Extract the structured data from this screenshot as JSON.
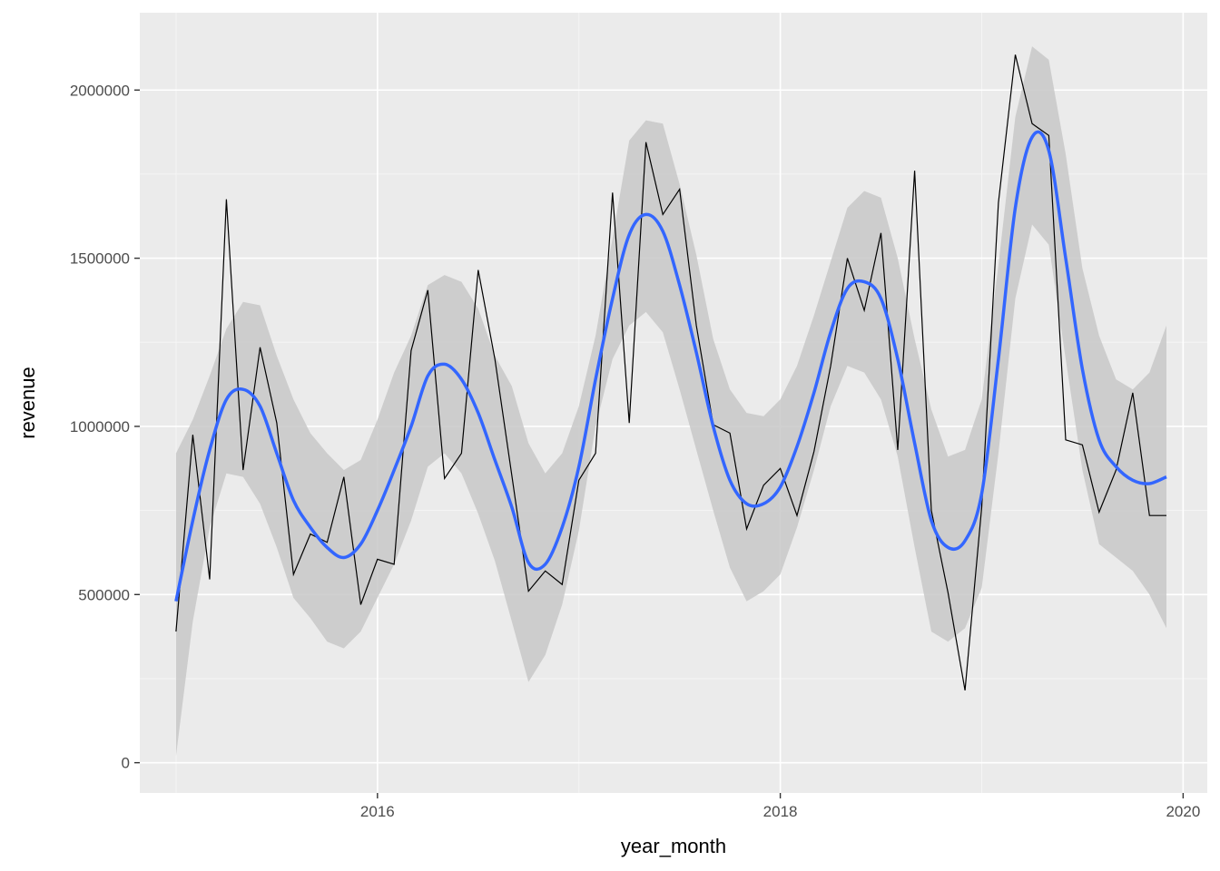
{
  "chart_data": {
    "type": "line",
    "title": "",
    "xlabel": "year_month",
    "ylabel": "revenue",
    "xlim": [
      2014.82,
      2020.12
    ],
    "ylim": [
      -90000,
      2230000
    ],
    "x_ticks": [
      2016,
      2018,
      2020
    ],
    "x_tick_labels": [
      "2016",
      "2018",
      "2020"
    ],
    "y_ticks": [
      0,
      500000,
      1000000,
      1500000,
      2000000
    ],
    "y_tick_labels": [
      "0",
      "500000",
      "1000000",
      "1500000",
      "2000000"
    ],
    "grid": true,
    "legend": "none",
    "colors": {
      "panel": "#ebebeb",
      "grid_major": "#ffffff",
      "grid_minor": "#f5f5f5",
      "raw_line": "#000000",
      "smooth_line": "#3366ff",
      "ribbon": "#c8c8c8"
    },
    "series": [
      {
        "kind": "raw",
        "x": [
          2015.0,
          2015.083,
          2015.167,
          2015.25,
          2015.333,
          2015.417,
          2015.5,
          2015.583,
          2015.667,
          2015.75,
          2015.833,
          2015.917,
          2016.0,
          2016.083,
          2016.167,
          2016.25,
          2016.333,
          2016.417,
          2016.5,
          2016.583,
          2016.667,
          2016.75,
          2016.833,
          2016.917,
          2017.0,
          2017.083,
          2017.167,
          2017.25,
          2017.333,
          2017.417,
          2017.5,
          2017.583,
          2017.667,
          2017.75,
          2017.833,
          2017.917,
          2018.0,
          2018.083,
          2018.167,
          2018.25,
          2018.333,
          2018.417,
          2018.5,
          2018.583,
          2018.667,
          2018.75,
          2018.833,
          2018.917,
          2019.0,
          2019.083,
          2019.167,
          2019.25,
          2019.333,
          2019.417,
          2019.5,
          2019.583,
          2019.667,
          2019.75,
          2019.833,
          2019.917
        ],
        "values": [
          390000,
          975000,
          545000,
          1675000,
          870000,
          1235000,
          1010000,
          560000,
          680000,
          655000,
          850000,
          470000,
          605000,
          590000,
          1225000,
          1405000,
          845000,
          920000,
          1465000,
          1200000,
          855000,
          510000,
          570000,
          530000,
          840000,
          920000,
          1695000,
          1010000,
          1845000,
          1630000,
          1705000,
          1300000,
          1005000,
          980000,
          695000,
          825000,
          875000,
          735000,
          925000,
          1180000,
          1500000,
          1345000,
          1575000,
          930000,
          1760000,
          750000,
          505000,
          215000,
          760000,
          1665000,
          2105000,
          1900000,
          1865000,
          960000,
          945000,
          745000,
          870000,
          1100000,
          735000,
          735000
        ]
      },
      {
        "kind": "smooth",
        "x": [
          2015.0,
          2015.083,
          2015.167,
          2015.25,
          2015.333,
          2015.417,
          2015.5,
          2015.583,
          2015.667,
          2015.75,
          2015.833,
          2015.917,
          2016.0,
          2016.083,
          2016.167,
          2016.25,
          2016.333,
          2016.417,
          2016.5,
          2016.583,
          2016.667,
          2016.75,
          2016.833,
          2016.917,
          2017.0,
          2017.083,
          2017.167,
          2017.25,
          2017.333,
          2017.417,
          2017.5,
          2017.583,
          2017.667,
          2017.75,
          2017.833,
          2017.917,
          2018.0,
          2018.083,
          2018.167,
          2018.25,
          2018.333,
          2018.417,
          2018.5,
          2018.583,
          2018.667,
          2018.75,
          2018.833,
          2018.917,
          2019.0,
          2019.083,
          2019.167,
          2019.25,
          2019.333,
          2019.417,
          2019.5,
          2019.583,
          2019.667,
          2019.75,
          2019.833,
          2019.917
        ],
        "values": [
          480000,
          720000,
          930000,
          1080000,
          1110000,
          1060000,
          920000,
          780000,
          700000,
          640000,
          610000,
          650000,
          750000,
          870000,
          1000000,
          1150000,
          1185000,
          1140000,
          1040000,
          900000,
          760000,
          595000,
          590000,
          700000,
          880000,
          1140000,
          1380000,
          1570000,
          1630000,
          1580000,
          1420000,
          1220000,
          1000000,
          840000,
          770000,
          770000,
          820000,
          940000,
          1100000,
          1280000,
          1410000,
          1430000,
          1380000,
          1200000,
          950000,
          720000,
          640000,
          660000,
          800000,
          1200000,
          1650000,
          1860000,
          1820000,
          1500000,
          1170000,
          960000,
          880000,
          840000,
          830000,
          850000
        ],
        "ribbon_upper": [
          920000,
          1020000,
          1150000,
          1290000,
          1370000,
          1360000,
          1210000,
          1080000,
          980000,
          920000,
          870000,
          900000,
          1020000,
          1160000,
          1270000,
          1420000,
          1450000,
          1430000,
          1350000,
          1210000,
          1120000,
          950000,
          860000,
          920000,
          1060000,
          1270000,
          1560000,
          1850000,
          1910000,
          1900000,
          1720000,
          1510000,
          1260000,
          1110000,
          1040000,
          1030000,
          1080000,
          1180000,
          1330000,
          1490000,
          1650000,
          1700000,
          1680000,
          1500000,
          1260000,
          1050000,
          910000,
          930000,
          1080000,
          1480000,
          1920000,
          2130000,
          2090000,
          1810000,
          1470000,
          1270000,
          1140000,
          1110000,
          1160000,
          1300000
        ],
        "ribbon_lower": [
          20000,
          420000,
          700000,
          860000,
          850000,
          770000,
          640000,
          490000,
          430000,
          360000,
          340000,
          390000,
          490000,
          590000,
          720000,
          880000,
          920000,
          860000,
          740000,
          600000,
          420000,
          240000,
          320000,
          470000,
          690000,
          1000000,
          1200000,
          1300000,
          1340000,
          1280000,
          1110000,
          930000,
          750000,
          580000,
          480000,
          510000,
          560000,
          700000,
          870000,
          1060000,
          1180000,
          1160000,
          1080000,
          910000,
          640000,
          390000,
          360000,
          400000,
          520000,
          920000,
          1380000,
          1600000,
          1540000,
          1200000,
          870000,
          650000,
          610000,
          570000,
          500000,
          400000
        ]
      }
    ]
  }
}
